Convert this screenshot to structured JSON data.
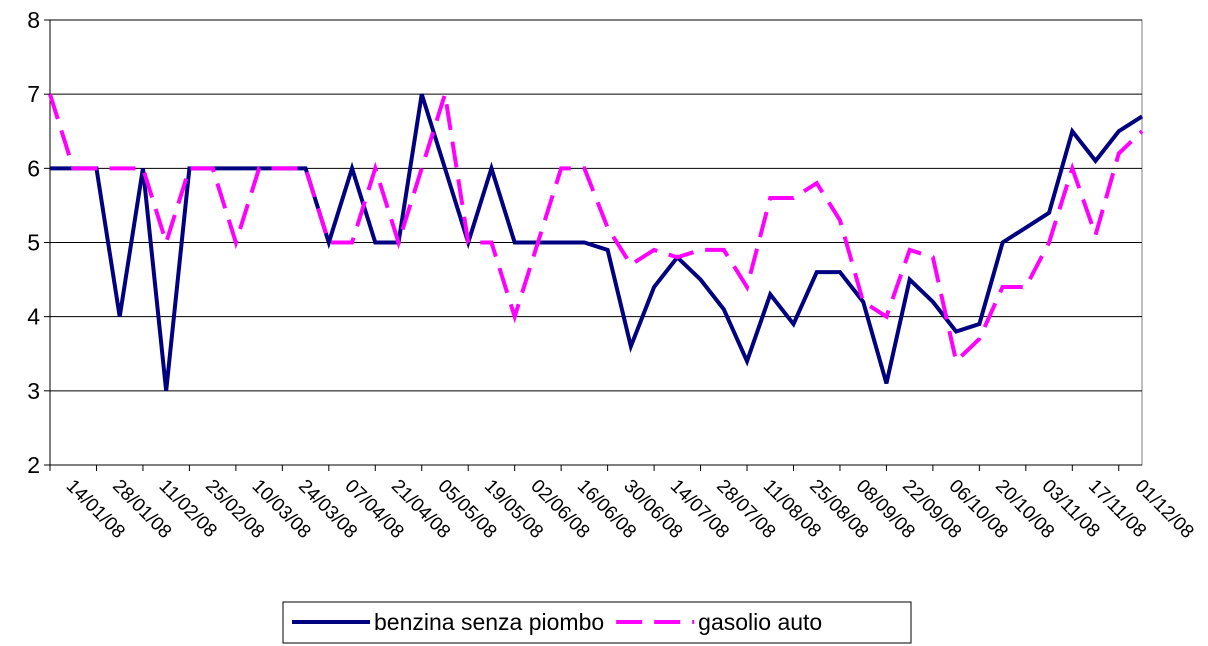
{
  "chart_data": {
    "type": "line",
    "categories": [
      null,
      "14/01/08",
      null,
      "28/01/08",
      null,
      "11/02/08",
      null,
      "25/02/08",
      null,
      "10/03/08",
      null,
      "24/03/08",
      null,
      "07/04/08",
      null,
      "21/04/08",
      null,
      "05/05/08",
      null,
      "19/05/08",
      null,
      "02/06/08",
      null,
      "16/06/08",
      null,
      "30/06/08",
      null,
      "14/07/08",
      null,
      "28/07/08",
      null,
      "11/08/08",
      null,
      "25/08/08",
      null,
      "08/09/08",
      null,
      "22/09/08",
      null,
      "06/10/08",
      null,
      "20/10/08",
      null,
      "03/11/08",
      null,
      "17/11/08",
      null,
      "01/12/08"
    ],
    "series": [
      {
        "name": "benzina senza piombo",
        "color": "#000080",
        "dashed": false,
        "values": [
          6,
          6,
          6,
          4,
          6,
          3,
          6,
          6,
          6,
          6,
          6,
          6,
          5,
          6,
          5,
          5,
          7,
          6,
          5,
          6,
          5,
          5,
          5,
          5,
          4.9,
          3.6,
          4.4,
          4.8,
          4.5,
          4.1,
          3.4,
          4.3,
          3.9,
          4.6,
          4.6,
          4.2,
          3.1,
          4.5,
          4.2,
          3.8,
          3.9,
          5.0,
          5.2,
          5.4,
          6.5,
          6.1,
          6.5,
          6.7
        ]
      },
      {
        "name": "gasolio auto",
        "color": "#ff00ff",
        "dashed": true,
        "values": [
          7,
          6,
          6,
          6,
          6,
          5,
          6,
          6,
          5,
          6,
          6,
          6,
          5,
          5,
          6,
          5,
          6,
          7,
          5,
          5,
          4,
          5,
          6,
          6,
          5.2,
          4.7,
          4.9,
          4.8,
          4.9,
          4.9,
          4.4,
          5.6,
          5.6,
          5.8,
          5.3,
          4.2,
          4.0,
          4.9,
          4.8,
          3.4,
          3.7,
          4.4,
          4.4,
          5.0,
          6.0,
          5.1,
          6.2,
          6.5
        ]
      }
    ],
    "ylim": [
      2,
      8
    ],
    "yticks": [
      2,
      3,
      4,
      5,
      6,
      7,
      8
    ],
    "grid": true,
    "legend": "bottom"
  }
}
